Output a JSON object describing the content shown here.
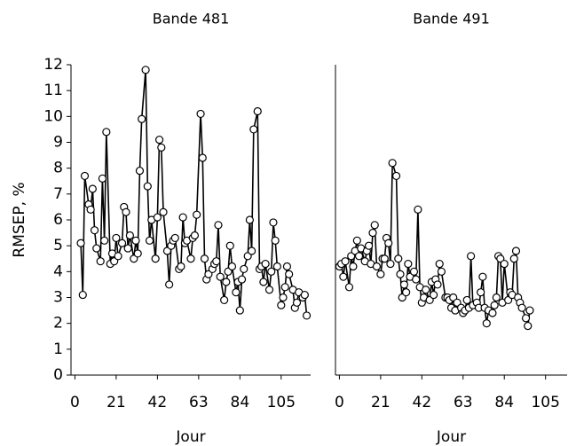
{
  "chart_data": [
    {
      "type": "line",
      "title": "Bande 481",
      "xlabel": "Jour",
      "ylabel": "RMSEP, %",
      "color": "#000000",
      "x": [
        3,
        4,
        5,
        7,
        8,
        9,
        10,
        11,
        13,
        14,
        15,
        16,
        18,
        19,
        20,
        21,
        22,
        24,
        25,
        26,
        27,
        28,
        30,
        31,
        32,
        33,
        34,
        36,
        37,
        38,
        39,
        41,
        42,
        43,
        44,
        45,
        47,
        48,
        49,
        50,
        51,
        53,
        54,
        55,
        56,
        57,
        59,
        60,
        61,
        62,
        64,
        65,
        66,
        67,
        68,
        70,
        71,
        72,
        73,
        74,
        76,
        77,
        78,
        79,
        80,
        82,
        83,
        84,
        85,
        86,
        88,
        89,
        90,
        91,
        93,
        94,
        95,
        96,
        97,
        99,
        100,
        101,
        102,
        103,
        105,
        106,
        107,
        108,
        109,
        111,
        112,
        113,
        114,
        116,
        117,
        118
      ],
      "values": [
        5.1,
        3.1,
        7.7,
        6.6,
        6.4,
        7.2,
        5.6,
        4.9,
        4.4,
        7.6,
        5.2,
        9.4,
        4.3,
        4.7,
        4.4,
        5.3,
        4.6,
        5.1,
        6.5,
        6.3,
        4.9,
        5.4,
        4.5,
        5.2,
        4.7,
        7.9,
        9.9,
        11.8,
        7.3,
        5.2,
        6.0,
        4.5,
        6.1,
        9.1,
        8.8,
        6.3,
        4.8,
        3.5,
        5.0,
        5.2,
        5.3,
        4.1,
        4.2,
        6.1,
        5.1,
        5.2,
        4.5,
        5.3,
        5.4,
        6.2,
        10.1,
        8.4,
        4.5,
        3.7,
        3.9,
        4.1,
        4.3,
        4.4,
        5.8,
        3.8,
        2.9,
        3.6,
        4.0,
        5.0,
        4.2,
        3.2,
        3.6,
        2.5,
        3.7,
        4.1,
        4.6,
        6.0,
        4.8,
        9.5,
        10.2,
        4.1,
        4.2,
        3.6,
        4.3,
        3.3,
        4.0,
        5.9,
        5.2,
        4.2,
        2.7,
        3.0,
        3.4,
        4.2,
        3.9,
        3.3,
        2.6,
        2.8,
        3.2,
        3.0,
        3.1,
        2.3
      ],
      "xlim": [
        -2,
        120
      ],
      "xticks": [
        0,
        21,
        42,
        63,
        84,
        105
      ],
      "ylim": [
        0,
        12
      ],
      "yticks": [
        0,
        1,
        2,
        3,
        4,
        5,
        6,
        7,
        8,
        9,
        10,
        11,
        12
      ]
    },
    {
      "type": "line",
      "title": "Bande 491",
      "xlabel": "Jour",
      "color": "#000000",
      "x": [
        0,
        1,
        2,
        3,
        5,
        6,
        7,
        8,
        9,
        10,
        11,
        13,
        14,
        15,
        16,
        17,
        18,
        19,
        21,
        22,
        23,
        24,
        25,
        26,
        27,
        29,
        30,
        31,
        32,
        33,
        34,
        35,
        36,
        38,
        39,
        40,
        41,
        42,
        43,
        44,
        46,
        47,
        48,
        49,
        50,
        51,
        52,
        54,
        55,
        56,
        57,
        58,
        59,
        60,
        62,
        63,
        64,
        65,
        66,
        67,
        68,
        70,
        71,
        72,
        73,
        74,
        75,
        76,
        78,
        79,
        80,
        81,
        82,
        83,
        84,
        86,
        87,
        88,
        89,
        90,
        91,
        92,
        93,
        95,
        96,
        97
      ],
      "values": [
        4.2,
        4.3,
        3.8,
        4.4,
        3.4,
        4.6,
        4.2,
        4.8,
        5.2,
        4.6,
        4.9,
        4.4,
        4.8,
        5.0,
        4.3,
        5.5,
        5.8,
        4.2,
        3.9,
        4.5,
        4.5,
        5.3,
        5.1,
        4.3,
        8.2,
        7.7,
        4.5,
        3.9,
        3.0,
        3.5,
        3.2,
        4.3,
        3.8,
        4.0,
        3.7,
        6.4,
        3.4,
        2.8,
        3.0,
        3.3,
        2.9,
        3.6,
        3.1,
        3.7,
        3.5,
        4.3,
        4.0,
        3.0,
        3.0,
        2.9,
        2.6,
        3.0,
        2.5,
        2.8,
        2.6,
        2.4,
        2.5,
        2.9,
        2.6,
        4.6,
        2.7,
        2.8,
        2.6,
        3.2,
        3.8,
        2.6,
        2.0,
        2.5,
        2.4,
        2.7,
        3.0,
        4.6,
        4.5,
        2.8,
        4.3,
        2.9,
        3.2,
        3.1,
        4.5,
        4.8,
        3.0,
        2.8,
        2.6,
        2.2,
        1.9,
        2.5
      ],
      "xlim": [
        -2,
        116
      ],
      "xticks": [
        0,
        21,
        42,
        63,
        84,
        105
      ],
      "ylim": [
        0,
        12
      ]
    }
  ]
}
